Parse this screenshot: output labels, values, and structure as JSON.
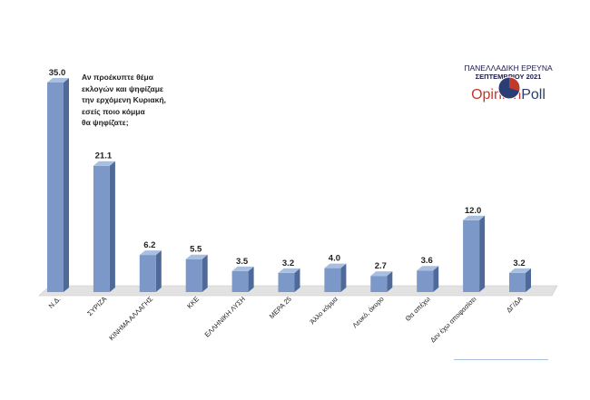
{
  "chart_data": {
    "type": "bar",
    "categories": [
      "Ν.Δ.",
      "ΣΥΡΙΖΑ",
      "ΚΙΝΗΜΑ ΑΛΛΑΓΗΣ",
      "ΚΚΕ",
      "ΕΛΛΗΝΙΚΗ ΛΥΣΗ",
      "ΜΕΡΑ 25",
      "Άλλο κόμμα",
      "Λευκό, άκυρο",
      "Θα απέχω",
      "Δεν έχω αποφασίσει",
      "ΔΓ/ΔΑ"
    ],
    "values": [
      35.0,
      21.1,
      6.2,
      5.5,
      3.5,
      3.2,
      4.0,
      2.7,
      3.6,
      12.0,
      3.2
    ],
    "value_labels": [
      "35.0",
      "21.1",
      "6.2",
      "5.5",
      "3.5",
      "3.2",
      "4.0",
      "2.7",
      "3.6",
      "12.0",
      "3.2"
    ],
    "ylim": [
      0,
      35
    ],
    "grid": false,
    "legend": "none"
  },
  "question_lines": [
    "Αν προέκυπτε θέμα",
    "εκλογών και ψηφίζαμε",
    "την ερχόμενη Κυριακή,",
    "εσείς ποιο κόμμα",
    "θα ψηφίζατε;"
  ],
  "branding": {
    "survey": "ΠΑΝΕΛΛΑΔΙΚΗ ΕΡΕΥΝΑ",
    "month": "ΣΕΠΤΕΜΒΡΙΟΥ 2021",
    "name_part1": "Opinion",
    "name_part2": "Poll",
    "logo_colors": [
      "#c0392b",
      "#2a3e73"
    ]
  },
  "colors": {
    "bar_front": "#7b98c8",
    "bar_side": "#4f6a99",
    "bar_top": "#a9bfe2",
    "floor": "#e2e2e2",
    "text": "#222222"
  }
}
